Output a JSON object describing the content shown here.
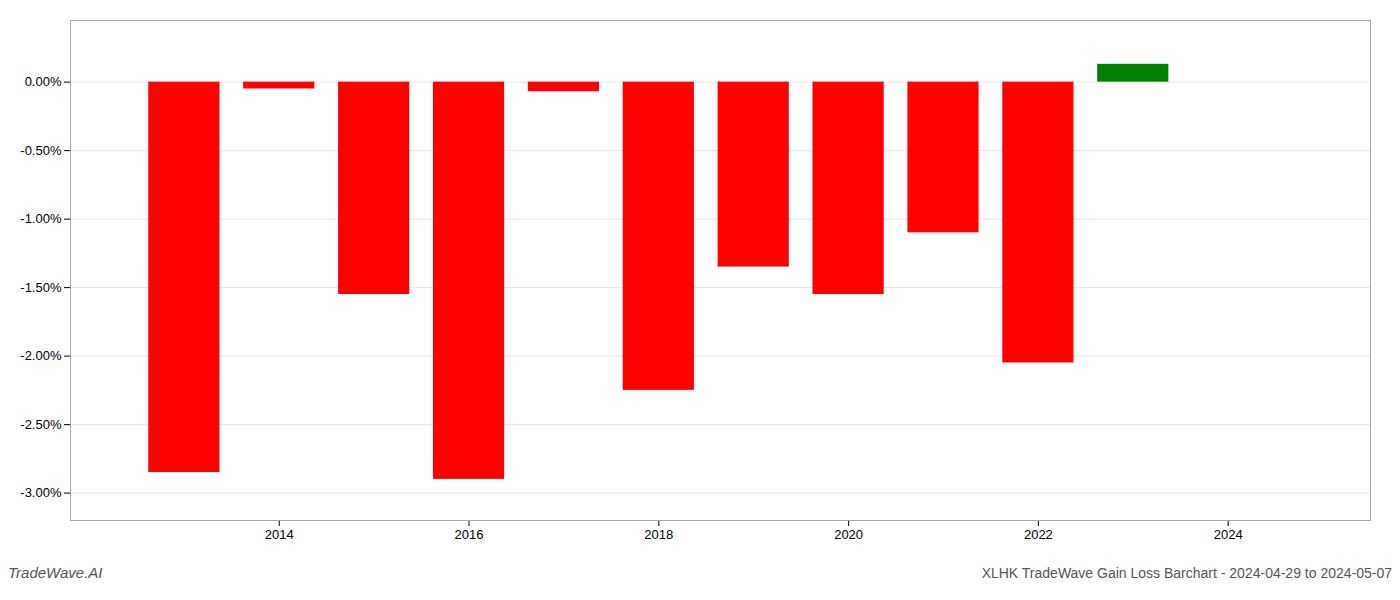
{
  "chart_data": {
    "type": "bar",
    "title": "XLHK TradeWave Gain Loss Barchart - 2024-04-29 to 2024-05-07",
    "annotations": [
      "TradeWave.AI"
    ],
    "x": [
      2013,
      2014,
      2015,
      2016,
      2017,
      2018,
      2019,
      2020,
      2021,
      2022,
      2023
    ],
    "values": [
      -2.85,
      -0.05,
      -1.55,
      -2.9,
      -0.07,
      -2.25,
      -1.35,
      -1.55,
      -1.1,
      -2.05,
      0.13
    ],
    "colors": [
      "#ff0000",
      "#ff0000",
      "#ff0000",
      "#ff0000",
      "#ff0000",
      "#ff0000",
      "#ff0000",
      "#ff0000",
      "#ff0000",
      "#ff0000",
      "#008000"
    ],
    "xlim": [
      2011.8,
      2025.5
    ],
    "xticks": [
      2014,
      2016,
      2018,
      2020,
      2022,
      2024
    ],
    "ylim": [
      -3.2,
      0.45
    ],
    "yticks": [
      {
        "value": 0.0,
        "label": "0.00%"
      },
      {
        "value": -0.5,
        "label": "-0.50%"
      },
      {
        "value": -1.0,
        "label": "-1.00%"
      },
      {
        "value": -1.5,
        "label": "-1.50%"
      },
      {
        "value": -2.0,
        "label": "-2.00%"
      },
      {
        "value": -2.5,
        "label": "-2.50%"
      },
      {
        "value": -3.0,
        "label": "-3.00%"
      }
    ],
    "grid": true
  }
}
